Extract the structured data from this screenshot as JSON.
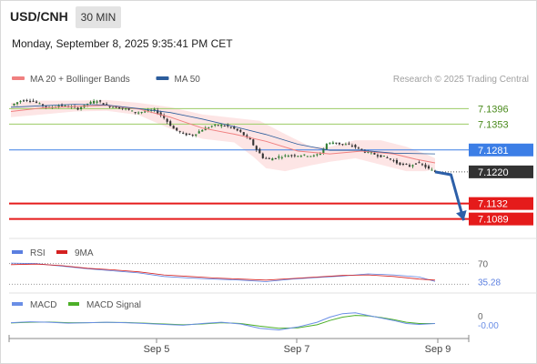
{
  "header": {
    "symbol": "USD/CNH",
    "timeframe": "30 MIN",
    "datetime": "Monday, September 8, 2025 9:35:41 PM CET",
    "credit": "Research © 2025 Trading Central"
  },
  "colors": {
    "ma20": "#f08080",
    "ma50": "#2c5d9c",
    "bollinger_fill": "#fde0e0",
    "resistance": "#9ccc65",
    "pivot": "#3c7ee6",
    "support": "#e51b1b",
    "current": "#333333",
    "candle_up": "#2e7d32",
    "candle_down": "#333333",
    "rsi": "#5b7fe0",
    "rsi_ma": "#d42020",
    "macd": "#6a8ee6",
    "macd_signal": "#4caf28",
    "forecast_arrow": "#2c5fa8"
  },
  "chart_data": [
    {
      "type": "candlestick",
      "title": "USD/CNH",
      "legend": [
        {
          "name": "MA 20 + Bollinger Bands",
          "color": "#f08080"
        },
        {
          "name": "MA 50",
          "color": "#2c5d9c"
        }
      ],
      "legend_position": "top-left",
      "ylim": [
        7.104,
        7.145
      ],
      "levels": [
        {
          "label": "7.1396",
          "value": 7.1396,
          "kind": "resistance"
        },
        {
          "label": "7.1353",
          "value": 7.1353,
          "kind": "resistance"
        },
        {
          "label": "7.1281",
          "value": 7.1281,
          "kind": "pivot"
        },
        {
          "label": "7.1220",
          "value": 7.122,
          "kind": "current"
        },
        {
          "label": "7.1132",
          "value": 7.1132,
          "kind": "support"
        },
        {
          "label": "7.1089",
          "value": 7.1089,
          "kind": "support"
        }
      ],
      "x_ticks": [
        "Sep 5",
        "Sep 7",
        "Sep 9"
      ],
      "price_path": [
        [
          0,
          7.1405
        ],
        [
          3,
          7.1418
        ],
        [
          6,
          7.142
        ],
        [
          9,
          7.1408
        ],
        [
          12,
          7.1398
        ],
        [
          15,
          7.1405
        ],
        [
          18,
          7.1402
        ],
        [
          21,
          7.1396
        ],
        [
          24,
          7.141
        ],
        [
          27,
          7.1418
        ],
        [
          30,
          7.1404
        ],
        [
          33,
          7.14
        ],
        [
          36,
          7.1395
        ],
        [
          39,
          7.1385
        ],
        [
          42,
          7.1388
        ],
        [
          45,
          7.1392
        ],
        [
          48,
          7.137
        ],
        [
          51,
          7.134
        ],
        [
          54,
          7.1325
        ],
        [
          57,
          7.1322
        ],
        [
          60,
          7.1338
        ],
        [
          63,
          7.1348
        ],
        [
          66,
          7.135
        ],
        [
          69,
          7.1344
        ],
        [
          72,
          7.133
        ],
        [
          75,
          7.1308
        ],
        [
          77,
          7.1282
        ],
        [
          79,
          7.126
        ],
        [
          81,
          7.1255
        ],
        [
          84,
          7.1262
        ],
        [
          87,
          7.1266
        ],
        [
          90,
          7.1266
        ],
        [
          93,
          7.1266
        ],
        [
          95,
          7.1264
        ],
        [
          97,
          7.1272
        ],
        [
          99,
          7.1298
        ],
        [
          101,
          7.1302
        ],
        [
          103,
          7.1298
        ],
        [
          105,
          7.1296
        ],
        [
          107,
          7.1293
        ],
        [
          109,
          7.1285
        ],
        [
          111,
          7.1276
        ],
        [
          113,
          7.1272
        ],
        [
          115,
          7.1266
        ],
        [
          117,
          7.1262
        ],
        [
          119,
          7.1255
        ],
        [
          121,
          7.1245
        ],
        [
          123,
          7.124
        ],
        [
          125,
          7.1236
        ],
        [
          127,
          7.1245
        ],
        [
          129,
          7.124
        ],
        [
          131,
          7.1228
        ],
        [
          133,
          7.122
        ]
      ],
      "ma20": [
        [
          0,
          7.1388
        ],
        [
          10,
          7.1398
        ],
        [
          20,
          7.1402
        ],
        [
          30,
          7.1405
        ],
        [
          40,
          7.1395
        ],
        [
          50,
          7.1372
        ],
        [
          60,
          7.1342
        ],
        [
          70,
          7.1325
        ],
        [
          80,
          7.1305
        ],
        [
          90,
          7.1278
        ],
        [
          100,
          7.127
        ],
        [
          110,
          7.1278
        ],
        [
          120,
          7.127
        ],
        [
          127,
          7.1255
        ],
        [
          133,
          7.1245
        ]
      ],
      "ma50": [
        [
          0,
          7.14
        ],
        [
          10,
          7.1404
        ],
        [
          20,
          7.1408
        ],
        [
          30,
          7.1406
        ],
        [
          40,
          7.1396
        ],
        [
          50,
          7.1385
        ],
        [
          60,
          7.1367
        ],
        [
          70,
          7.1346
        ],
        [
          80,
          7.1324
        ],
        [
          90,
          7.1297
        ],
        [
          100,
          7.128
        ],
        [
          110,
          7.128
        ],
        [
          120,
          7.1272
        ],
        [
          133,
          7.127
        ]
      ],
      "bollinger_upper": [
        [
          0,
          7.1412
        ],
        [
          10,
          7.1418
        ],
        [
          20,
          7.1418
        ],
        [
          30,
          7.142
        ],
        [
          40,
          7.1412
        ],
        [
          50,
          7.14
        ],
        [
          60,
          7.138
        ],
        [
          70,
          7.137
        ],
        [
          78,
          7.1362
        ],
        [
          86,
          7.1325
        ],
        [
          94,
          7.129
        ],
        [
          100,
          7.129
        ],
        [
          108,
          7.1308
        ],
        [
          116,
          7.1308
        ],
        [
          124,
          7.129
        ],
        [
          130,
          7.127
        ],
        [
          133,
          7.1258
        ]
      ],
      "bollinger_lower": [
        [
          0,
          7.1372
        ],
        [
          10,
          7.138
        ],
        [
          20,
          7.1388
        ],
        [
          30,
          7.139
        ],
        [
          40,
          7.1378
        ],
        [
          50,
          7.134
        ],
        [
          60,
          7.1312
        ],
        [
          70,
          7.1302
        ],
        [
          76,
          7.1262
        ],
        [
          80,
          7.123
        ],
        [
          86,
          7.1222
        ],
        [
          94,
          7.1238
        ],
        [
          100,
          7.1248
        ],
        [
          108,
          7.1258
        ],
        [
          116,
          7.124
        ],
        [
          124,
          7.1222
        ],
        [
          130,
          7.1222
        ],
        [
          133,
          7.1228
        ]
      ],
      "forecast": [
        [
          133,
          7.122
        ],
        [
          138,
          7.1212
        ],
        [
          142,
          7.1085
        ]
      ]
    },
    {
      "type": "line",
      "title": "RSI",
      "series": [
        {
          "name": "RSI",
          "color": "#5b7fe0"
        },
        {
          "name": "9MA",
          "color": "#d42020"
        }
      ],
      "reference_lines": [
        {
          "label": "70",
          "value": 70
        }
      ],
      "last_value_label": "35.28",
      "last_value": 35.28,
      "ylim": [
        20,
        80
      ],
      "rsi": [
        [
          0,
          71
        ],
        [
          8,
          70
        ],
        [
          16,
          65
        ],
        [
          24,
          60
        ],
        [
          32,
          56
        ],
        [
          40,
          52
        ],
        [
          48,
          45
        ],
        [
          56,
          42
        ],
        [
          64,
          40
        ],
        [
          72,
          38
        ],
        [
          80,
          35
        ],
        [
          88,
          40
        ],
        [
          96,
          43
        ],
        [
          104,
          46
        ],
        [
          112,
          50
        ],
        [
          120,
          48
        ],
        [
          128,
          44
        ],
        [
          133,
          35.28
        ]
      ],
      "rsi_ma": [
        [
          0,
          68
        ],
        [
          8,
          69
        ],
        [
          16,
          66
        ],
        [
          24,
          61
        ],
        [
          32,
          58
        ],
        [
          40,
          54
        ],
        [
          48,
          48
        ],
        [
          56,
          45
        ],
        [
          64,
          42
        ],
        [
          72,
          40
        ],
        [
          80,
          38
        ],
        [
          88,
          41
        ],
        [
          96,
          44
        ],
        [
          104,
          47
        ],
        [
          112,
          48
        ],
        [
          120,
          45
        ],
        [
          128,
          40
        ],
        [
          133,
          38
        ]
      ]
    },
    {
      "type": "line",
      "title": "MACD",
      "series": [
        {
          "name": "MACD",
          "color": "#6a8ee6"
        },
        {
          "name": "MACD Signal",
          "color": "#4caf28"
        }
      ],
      "reference_lines": [
        {
          "label": "0",
          "value": 0
        }
      ],
      "last_value_label": "-0.00",
      "last_value": 0,
      "ylim": [
        -1.8,
        1.6
      ],
      "macd": [
        [
          0,
          0.05
        ],
        [
          6,
          0.15
        ],
        [
          12,
          0.1
        ],
        [
          18,
          0
        ],
        [
          24,
          0.05
        ],
        [
          30,
          0.1
        ],
        [
          36,
          0.05
        ],
        [
          42,
          -0.05
        ],
        [
          48,
          -0.15
        ],
        [
          54,
          -0.25
        ],
        [
          60,
          -0.05
        ],
        [
          66,
          0.1
        ],
        [
          72,
          -0.1
        ],
        [
          78,
          -0.6
        ],
        [
          84,
          -0.8
        ],
        [
          90,
          -0.45
        ],
        [
          96,
          0.1
        ],
        [
          100,
          0.7
        ],
        [
          104,
          1.1
        ],
        [
          108,
          1.2
        ],
        [
          112,
          0.9
        ],
        [
          116,
          0.6
        ],
        [
          120,
          0.3
        ],
        [
          124,
          -0.05
        ],
        [
          128,
          -0.15
        ],
        [
          133,
          -0.05
        ]
      ],
      "macd_signal": [
        [
          0,
          0.02
        ],
        [
          6,
          0.1
        ],
        [
          12,
          0.12
        ],
        [
          18,
          0.05
        ],
        [
          24,
          0.05
        ],
        [
          30,
          0.08
        ],
        [
          36,
          0.07
        ],
        [
          42,
          0
        ],
        [
          48,
          -0.1
        ],
        [
          54,
          -0.2
        ],
        [
          60,
          -0.1
        ],
        [
          66,
          0.05
        ],
        [
          72,
          -0.05
        ],
        [
          78,
          -0.35
        ],
        [
          84,
          -0.6
        ],
        [
          90,
          -0.55
        ],
        [
          96,
          -0.2
        ],
        [
          100,
          0.3
        ],
        [
          104,
          0.7
        ],
        [
          108,
          0.9
        ],
        [
          112,
          0.85
        ],
        [
          116,
          0.65
        ],
        [
          120,
          0.4
        ],
        [
          124,
          0.1
        ],
        [
          128,
          -0.05
        ],
        [
          133,
          -0.05
        ]
      ]
    }
  ]
}
